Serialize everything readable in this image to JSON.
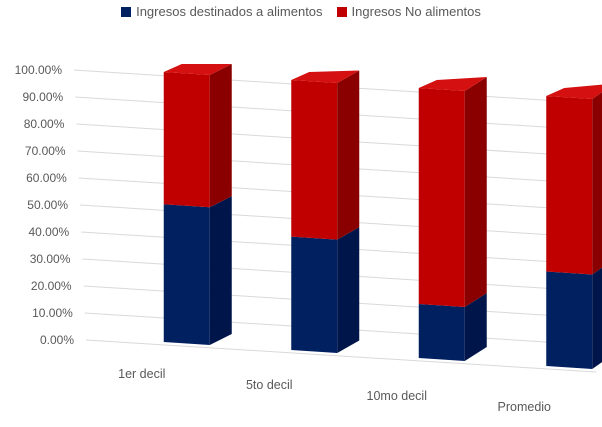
{
  "chart_data": {
    "type": "bar",
    "stacked": true,
    "three_d": true,
    "categories": [
      "1er decil",
      "5to decil",
      "10mo decil",
      "Promedio"
    ],
    "series": [
      {
        "name": "Ingresos destinados a alimentos",
        "color": "#002060",
        "values": [
          0.51,
          0.42,
          0.2,
          0.35
        ]
      },
      {
        "name": "Ingresos No alimentos",
        "color": "#C00000",
        "values": [
          0.49,
          0.58,
          0.8,
          0.65
        ]
      }
    ],
    "yticks": [
      "0.00%",
      "10.00%",
      "20.00%",
      "30.00%",
      "40.00%",
      "50.00%",
      "60.00%",
      "70.00%",
      "80.00%",
      "90.00%",
      "100.00%"
    ],
    "ylim": [
      0,
      1
    ],
    "grid": true,
    "legend_position": "top"
  }
}
